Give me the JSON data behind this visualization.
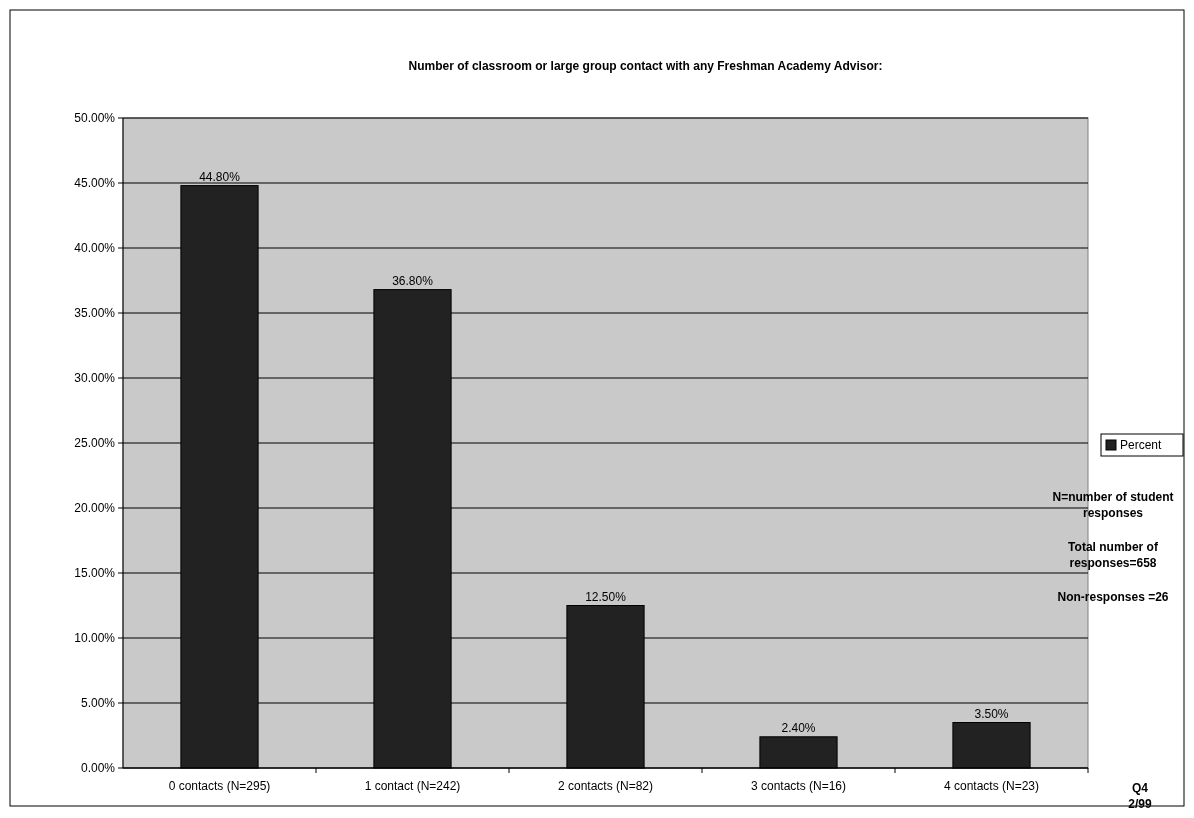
{
  "chart_data": {
    "type": "bar",
    "title": "Number of classroom or large group contact with any Freshman Academy Advisor:",
    "categories": [
      "0 contacts (N=295)",
      "1 contact (N=242)",
      "2 contacts (N=82)",
      "3 contacts (N=16)",
      "4 contacts (N=23)"
    ],
    "series": [
      {
        "name": "Percent",
        "color": "#222222",
        "values": [
          44.8,
          36.8,
          12.5,
          2.4,
          3.5
        ],
        "value_labels": [
          "44.80%",
          "36.80%",
          "12.50%",
          "2.40%",
          "3.50%"
        ]
      }
    ],
    "ylim": [
      0,
      50
    ],
    "yticks": [
      {
        "value": 0,
        "label": "0.00%"
      },
      {
        "value": 5,
        "label": "5.00%"
      },
      {
        "value": 10,
        "label": "10.00%"
      },
      {
        "value": 15,
        "label": "15.00%"
      },
      {
        "value": 20,
        "label": "20.00%"
      },
      {
        "value": 25,
        "label": "25.00%"
      },
      {
        "value": 30,
        "label": "30.00%"
      },
      {
        "value": 35,
        "label": "35.00%"
      },
      {
        "value": 40,
        "label": "40.00%"
      },
      {
        "value": 45,
        "label": "45.00%"
      },
      {
        "value": 50,
        "label": "50.00%"
      }
    ],
    "grid": "y",
    "legend": "right",
    "annotations": [
      "N=number of student responses",
      "Total number of responses=658",
      "Non-responses =26",
      "Q4 2/99"
    ]
  }
}
